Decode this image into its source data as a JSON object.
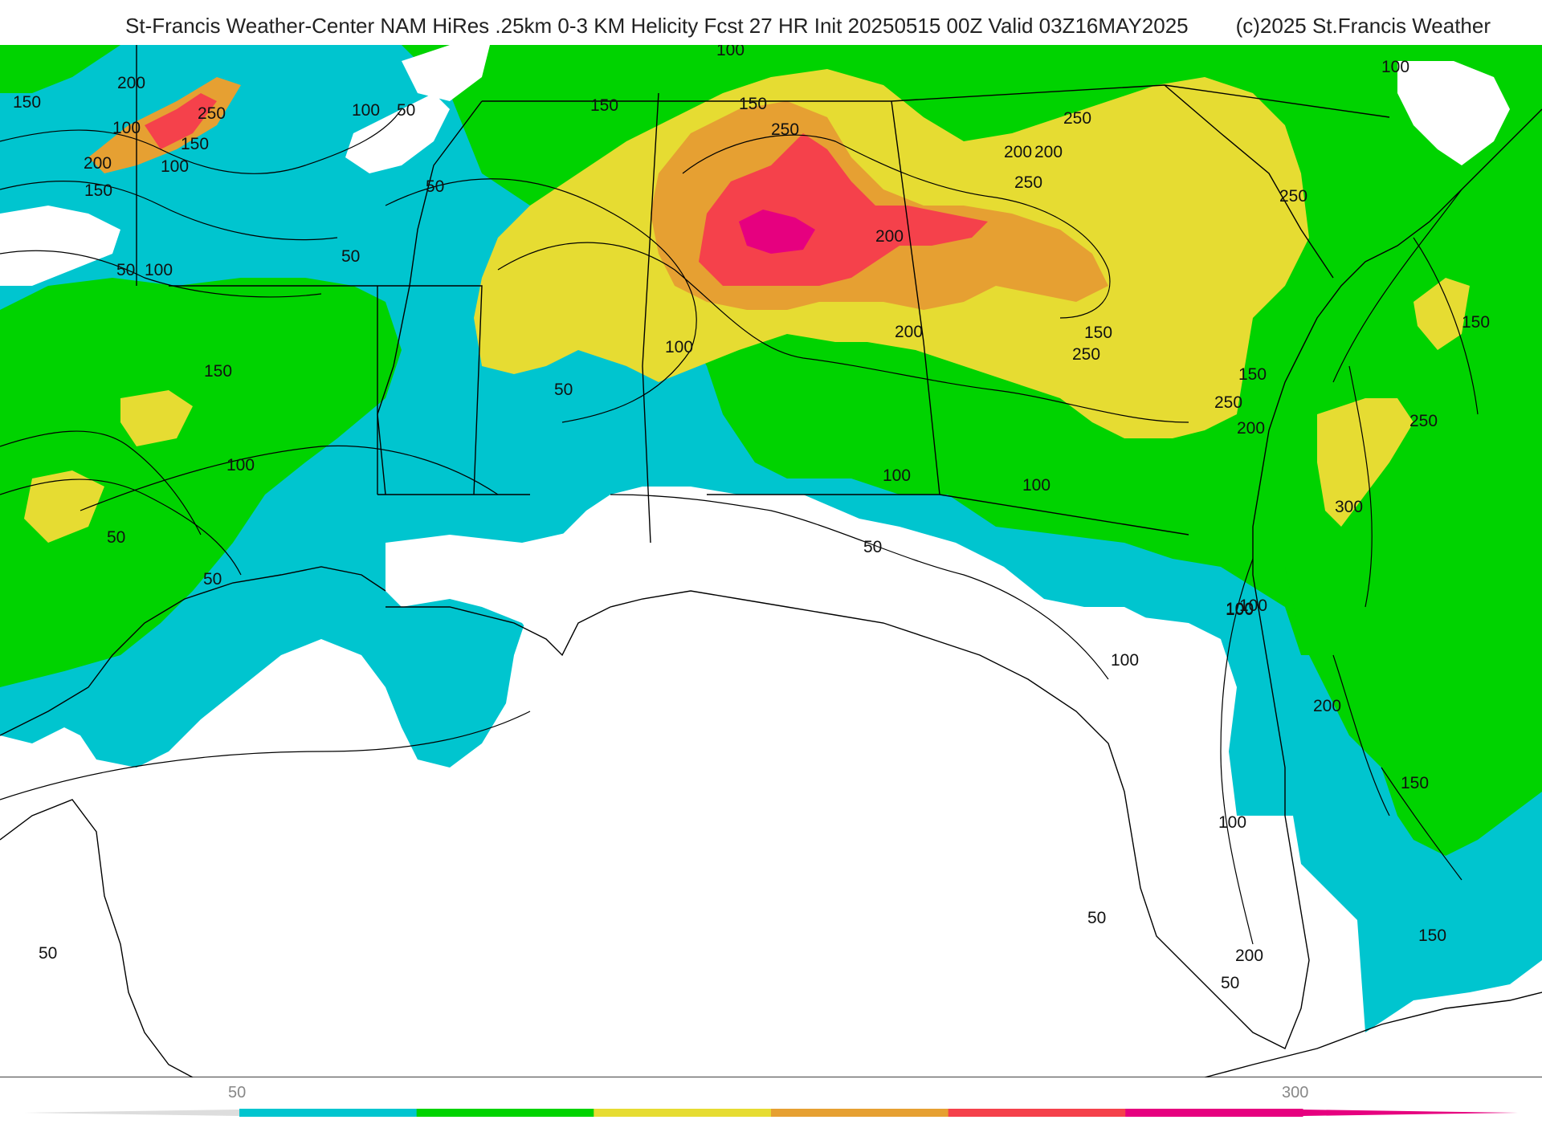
{
  "header": {
    "title": "St-Francis Weather-Center NAM HiRes .25km 0-3 KM Helicity Fcst 27 HR Init 20250515 00Z  Valid 03Z16MAY2025",
    "copyright": "(c)2025 St.Francis Weather"
  },
  "colorbar": {
    "label_low": "50",
    "label_high": "300",
    "colors": [
      "#00c5cf",
      "#00d300",
      "#e6dc32",
      "#e6a032",
      "#f5414b",
      "#e6007f"
    ]
  },
  "map": {
    "field": "0-3 KM Helicity",
    "contour_labels": [
      "150",
      "100",
      "250",
      "200",
      "100",
      "50",
      "200",
      "150",
      "150",
      "100",
      "50",
      "50",
      "100",
      "50",
      "100",
      "100",
      "150",
      "250",
      "200",
      "200",
      "150",
      "250",
      "250",
      "200",
      "100",
      "200",
      "150",
      "250",
      "150",
      "50",
      "100",
      "150",
      "50",
      "50",
      "100",
      "50",
      "200",
      "150",
      "100",
      "300",
      "200",
      "250",
      "250",
      "100",
      "100",
      "150",
      "250",
      "100",
      "150",
      "200",
      "50",
      "100",
      "100",
      "50",
      "50"
    ]
  }
}
